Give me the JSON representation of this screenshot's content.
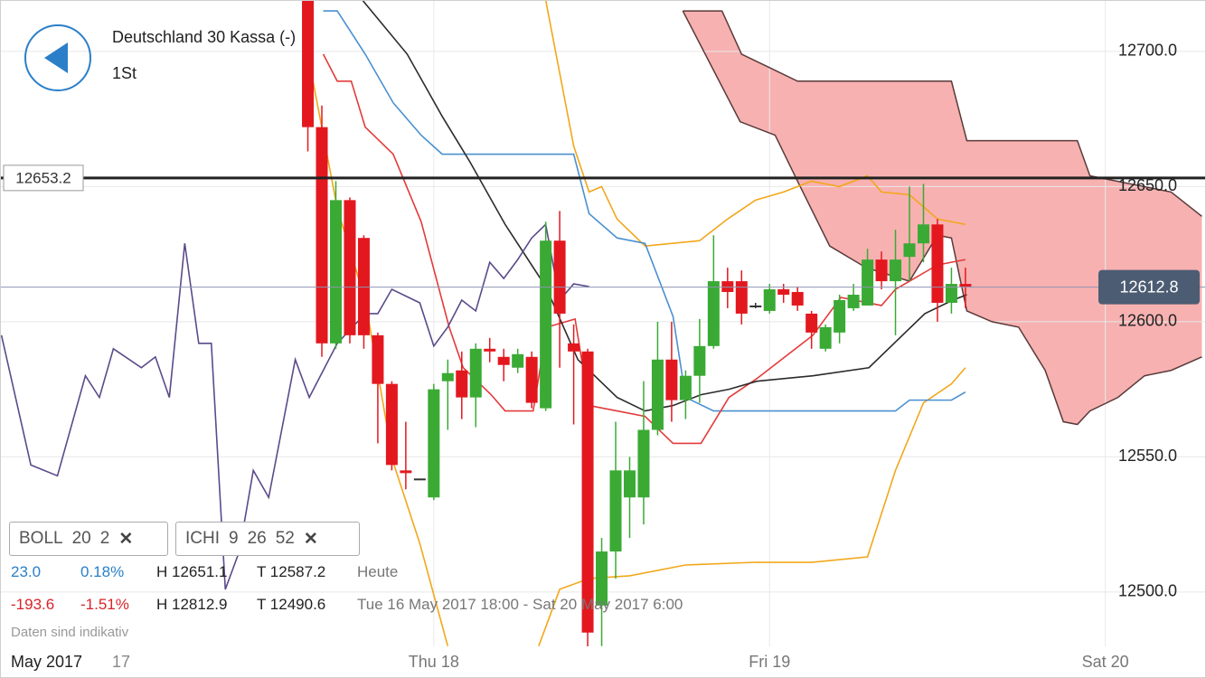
{
  "chart_data": {
    "type": "candlestick",
    "title": "Deutschland 30 Kassa (-)",
    "subtitle": "1St",
    "candles": {
      "open": [
        12720,
        12672,
        12592,
        12645,
        12631,
        12595,
        12577,
        12545,
        12542,
        12535,
        12578,
        12582,
        12572,
        12590,
        12587,
        12583,
        12587,
        12568,
        12630,
        12592,
        12589,
        12495,
        12515,
        12535,
        12535,
        12560,
        12586,
        12571,
        12580,
        12591,
        12615,
        12615,
        12606,
        12604,
        12612,
        12611,
        12603,
        12590,
        12596,
        12605,
        12606,
        12623,
        12615,
        12624,
        12629,
        12636,
        12607,
        12614
      ],
      "high": [
        12725,
        12680,
        12652,
        12646,
        12632,
        12596,
        12578,
        12563,
        12542,
        12577,
        12586,
        12589,
        12592,
        12594,
        12590,
        12590,
        12589,
        12637,
        12641,
        12599,
        12590,
        12520,
        12563,
        12550,
        12578,
        12600,
        12600,
        12582,
        12601,
        12632,
        12620,
        12619,
        12607,
        12614,
        12614,
        12613,
        12604,
        12599,
        12610,
        12614,
        12627,
        12626,
        12634,
        12650,
        12651,
        12638,
        12620,
        12620
      ],
      "low": [
        12663,
        12587,
        12590,
        12592,
        12590,
        12555,
        12545,
        12538,
        12542,
        12534,
        12560,
        12564,
        12561,
        12585,
        12578,
        12581,
        12568,
        12567,
        12583,
        12562,
        12460,
        12480,
        12505,
        12520,
        12525,
        12558,
        12563,
        12564,
        12570,
        12590,
        12605,
        12599,
        12605,
        12603,
        12607,
        12604,
        12590,
        12589,
        12592,
        12604,
        12606,
        12612,
        12595,
        12615,
        12622,
        12600,
        12603,
        12605
      ],
      "close": [
        12672,
        12592,
        12645,
        12595,
        12595,
        12577,
        12547,
        12544,
        12542,
        12575,
        12581,
        12572,
        12590,
        12589,
        12584,
        12588,
        12570,
        12630,
        12603,
        12589,
        12485,
        12515,
        12545,
        12545,
        12560,
        12586,
        12571,
        12580,
        12591,
        12615,
        12611,
        12603,
        12606,
        12612,
        12610,
        12606,
        12596,
        12598,
        12608,
        12610,
        12623,
        12615,
        12623,
        12629,
        12636,
        12607,
        12614,
        12613
      ]
    },
    "up_color": "#3aaa35",
    "down_color": "#e3181f",
    "flat_color": "#333333",
    "lines": [
      {
        "color": "#f2a71b",
        "x": [
          17.0,
          19.0,
          20.1,
          21.0,
          22.1,
          24.1,
          28.0,
          30.0,
          32.0,
          34.0,
          36.0,
          38.0,
          40.0,
          41.0,
          43.0,
          45.0,
          47.0
        ],
        "values": [
          12719,
          12665,
          12648,
          12650,
          12638,
          12628,
          12630,
          12638,
          12645,
          12648,
          12652,
          12650,
          12654,
          12648,
          12647,
          12638,
          12636
        ]
      },
      {
        "color": "#f2a71b",
        "x": [
          0,
          2.1,
          4.1,
          6.1,
          8.0,
          10.0,
          null,
          16.5,
          18.0,
          20.1,
          23.0,
          27.0,
          32.0,
          36.0,
          40.0,
          42.0,
          44.0,
          46.0,
          47.0
        ],
        "values": [
          12699,
          12642,
          12608,
          12548,
          12518,
          12480,
          null,
          12480,
          12501,
          12505,
          12506,
          12510,
          12511,
          12511,
          12513,
          12545,
          12570,
          12577,
          12583
        ]
      },
      {
        "color": "#4a90d0",
        "x": [
          1.1,
          2.1,
          4.1,
          6.1,
          8.1,
          9.6,
          19.0,
          20.1,
          22.1,
          24.1,
          26.1,
          27.0,
          29.0,
          42.0,
          43.0,
          46.0,
          47.0
        ],
        "values": [
          12715,
          12715,
          12699,
          12681,
          12669,
          12662,
          12662,
          12640,
          12631,
          12629,
          12602,
          12572,
          12567,
          12567,
          12571,
          12571,
          12574
        ]
      },
      {
        "color": "#e33b3b",
        "x": [
          1.1,
          2.1,
          3.1,
          4.1,
          6.1,
          8.1,
          10.1,
          11.1,
          13.1,
          14.1,
          16.1,
          17.1,
          19.1,
          20.1,
          22.1,
          24.1,
          26.1,
          28.1,
          30.1,
          32.1,
          34.1,
          36.1,
          38.1,
          41.0,
          42.0,
          45.0,
          47.0
        ],
        "values": [
          12699,
          12689,
          12689,
          12672,
          12662,
          12637,
          12598,
          12583,
          12573,
          12567,
          12567,
          12598,
          12601,
          12569,
          12567,
          12565,
          12555,
          12555,
          12572,
          12579,
          12587,
          12595,
          12609,
          12606,
          12612,
          12621,
          12623
        ]
      },
      {
        "color": "#2b2b2b",
        "x": [
          3.9,
          7.1,
          9.6,
          11.6,
          14.1,
          17.0,
          19.3,
          22.1,
          24.1,
          26.1,
          28.1,
          30.1,
          32.1,
          36.1,
          40.1,
          42.1,
          44.1,
          46.1,
          47.1
        ],
        "values": [
          12719,
          12699,
          12676,
          12659,
          12636,
          12613,
          12586,
          12572,
          12567,
          12569,
          12573,
          12575,
          12578,
          12580,
          12583,
          12593,
          12603,
          12608,
          12610
        ]
      },
      {
        "color": "#5b4a8a",
        "x": [
          -21.9,
          -19.8,
          -17.9,
          -15.9,
          -14.9,
          -13.9,
          -11.9,
          -10.9,
          -9.9,
          -8.8,
          -7.8,
          -6.9,
          -5.9,
          -4.9,
          -3.9,
          -2.8,
          -0.9,
          0.1,
          2.1,
          4.1,
          5.0,
          6.0,
          8.0,
          9.0,
          10.0,
          11.0,
          12.0,
          13.0,
          14.0,
          15.0,
          16.0,
          17.0,
          18.0,
          19.0,
          20.1
        ],
        "values": [
          12595,
          12547,
          12543,
          12580,
          12572,
          12590,
          12583,
          12587,
          12572,
          12629,
          12592,
          12592,
          12501,
          12515,
          12545,
          12535,
          12586,
          12572,
          12592,
          12603,
          12603,
          12612,
          12607,
          12591,
          12598,
          12608,
          12604,
          12622,
          12616,
          12623,
          12631,
          12636,
          12608,
          12614,
          12613
        ]
      }
    ],
    "cloud": {
      "color": "#f7b1b1",
      "edge_color": "#5a3a3a",
      "upper": {
        "x": [
          26.8,
          29.6,
          31.0,
          33.0,
          35.0,
          46.0,
          47.1,
          55.0,
          55.9,
          61.7,
          63.9
        ],
        "values": [
          12715,
          12715,
          12699,
          12694,
          12689,
          12689,
          12667,
          12667,
          12654,
          12648,
          12639
        ]
      },
      "lower": {
        "x": [
          26.8,
          30.9,
          33.4,
          35.0,
          37.3,
          39.9,
          43.0,
          45.0,
          46.0,
          47.1,
          48.9,
          50.8,
          52.7,
          54.0,
          55.0,
          55.9,
          57.9,
          59.8,
          61.7,
          63.9
        ],
        "values": [
          12715,
          12674,
          12669,
          12652,
          12628,
          12620,
          12615,
          12632,
          12631,
          12604,
          12600,
          12598,
          12582,
          12563,
          12562,
          12567,
          12572,
          12580,
          12582,
          12587
        ]
      }
    },
    "level": 12653.2,
    "last_price": 12612.8,
    "xlim": [
      -21.94,
      64.13
    ],
    "ylim": [
      12479.9,
      12718.7
    ],
    "yticks": [
      {
        "value": 12500,
        "label": "12500.0"
      },
      {
        "value": 12550,
        "label": "12550.0"
      },
      {
        "value": 12600,
        "label": "12600.0"
      },
      {
        "value": 12650,
        "label": "12650.0"
      },
      {
        "value": 12700,
        "label": "12700.0"
      }
    ],
    "xticks": [
      {
        "value": 9,
        "label": "Thu 18"
      },
      {
        "value": 33,
        "label": "Fri 19"
      },
      {
        "value": 57,
        "label": "Sat 20"
      }
    ],
    "x_start_label": "May 2017",
    "x_start_day": "17",
    "grid": true,
    "indicators": [
      {
        "name": "BOLL",
        "params": [
          20,
          2
        ]
      },
      {
        "name": "ICHI",
        "params": [
          9,
          26,
          52
        ]
      }
    ],
    "stats": [
      [
        "23.0",
        "0.18%",
        "H 12651.1",
        "T 12587.2",
        "Heute"
      ],
      [
        "-193.6",
        "-1.51%",
        "H 12812.9",
        "T 12490.6",
        "Tue 16 May 2017 18:00 - Sat 20 May 2017 6:00"
      ]
    ],
    "note": "Daten sind indikativ"
  }
}
